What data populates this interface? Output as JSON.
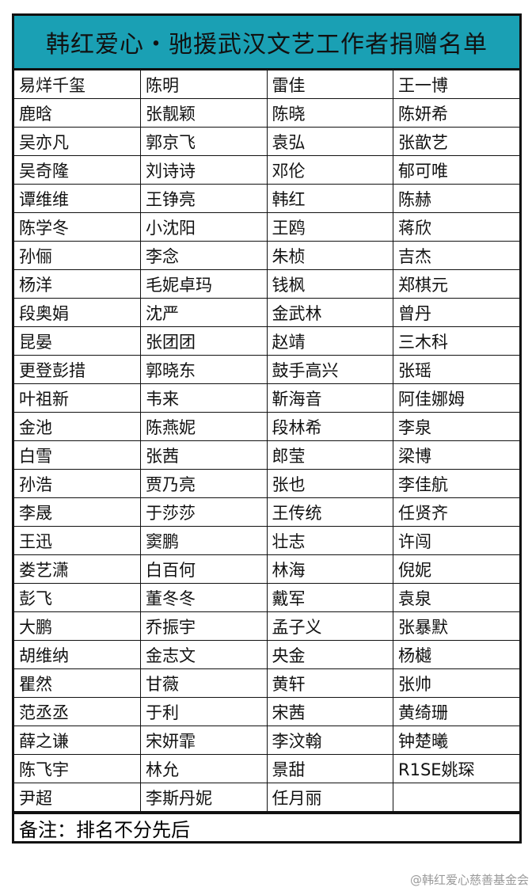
{
  "title": "韩红爱心・驰援武汉文艺工作者捐赠名单",
  "rows": [
    [
      "易烊千玺",
      "陈明",
      "雷佳",
      "王一博"
    ],
    [
      "鹿晗",
      "张靓颖",
      "陈晓",
      "陈妍希"
    ],
    [
      "吴亦凡",
      "郭京飞",
      "袁弘",
      "张歆艺"
    ],
    [
      "吴奇隆",
      "刘诗诗",
      "邓伦",
      "郁可唯"
    ],
    [
      "谭维维",
      "王铮亮",
      "韩红",
      "陈赫"
    ],
    [
      "陈学冬",
      "小沈阳",
      "王鸥",
      "蒋欣"
    ],
    [
      "孙俪",
      "李念",
      "朱桢",
      "吉杰"
    ],
    [
      "杨洋",
      "毛妮卓玛",
      "钱枫",
      "郑棋元"
    ],
    [
      "段奥娟",
      "沈严",
      "金武林",
      "曾丹"
    ],
    [
      "昆晏",
      "张团团",
      "赵靖",
      "三木科"
    ],
    [
      "更登彭措",
      "郭晓东",
      "鼓手高兴",
      "张瑶"
    ],
    [
      "叶祖新",
      "韦来",
      "靳海音",
      "阿佳娜姆"
    ],
    [
      "金池",
      "陈燕妮",
      "段林希",
      "李泉"
    ],
    [
      "白雪",
      "张茜",
      "郎莹",
      "梁博"
    ],
    [
      "孙浩",
      "贾乃亮",
      "张也",
      "李佳航"
    ],
    [
      "李晟",
      "于莎莎",
      "王传统",
      "任贤齐"
    ],
    [
      "王迅",
      "窦鹏",
      "壮志",
      "许闯"
    ],
    [
      "娄艺潇",
      "白百何",
      "林海",
      "倪妮"
    ],
    [
      "彭飞",
      "董冬冬",
      "戴军",
      "袁泉"
    ],
    [
      "大鹏",
      "乔振宇",
      "孟子义",
      "张暴默"
    ],
    [
      "胡维纳",
      "金志文",
      "央金",
      "杨樾"
    ],
    [
      "瞿然",
      "甘薇",
      "黄轩",
      "张帅"
    ],
    [
      "范丞丞",
      "于利",
      "宋茜",
      "黄绮珊"
    ],
    [
      "薛之谦",
      "宋妍霏",
      "李汶翰",
      "钟楚曦"
    ],
    [
      "陈飞宇",
      "林允",
      "景甜",
      "R1SE姚琛"
    ],
    [
      "尹超",
      "李斯丹妮",
      "任月丽",
      ""
    ]
  ],
  "note": "备注：排名不分先后",
  "watermark": "@韩红爱心慈善基金会",
  "colors": {
    "header_bg": "#1aa0b4"
  }
}
